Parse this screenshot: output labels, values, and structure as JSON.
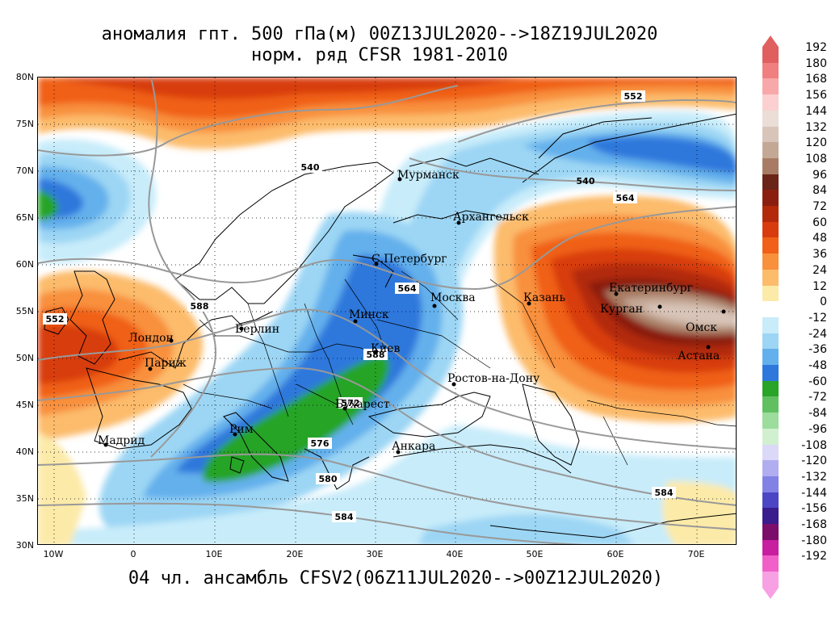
{
  "title": {
    "line1": "аномалия гпт. 500 гПа(м) 00Z13JUL2020-->18Z19JUL2020",
    "line2": "норм. ряд CFSR 1981-2010"
  },
  "footer": "04 чл. ансамбль CFSV2(06Z11JUL2020-->00Z12JUL2020)",
  "axes": {
    "lat_labels": [
      "80N",
      "75N",
      "70N",
      "65N",
      "60N",
      "55N",
      "50N",
      "45N",
      "40N",
      "35N",
      "30N"
    ],
    "lon_labels": [
      "10W",
      "0",
      "10E",
      "20E",
      "30E",
      "40E",
      "50E",
      "60E",
      "70E"
    ]
  },
  "legend": {
    "values": [
      "192",
      "180",
      "168",
      "156",
      "144",
      "132",
      "120",
      "108",
      "96",
      "84",
      "72",
      "60",
      "48",
      "36",
      "24",
      "12",
      "0",
      "-12",
      "-24",
      "-36",
      "-48",
      "-60",
      "-72",
      "-84",
      "-96",
      "-108",
      "-120",
      "-132",
      "-144",
      "-156",
      "-168",
      "-180",
      "-192"
    ],
    "colors": [
      "#e06060",
      "#f08080",
      "#f8a8a8",
      "#fcd0d0",
      "#eaded6",
      "#d8c4b8",
      "#c4a896",
      "#a87c64",
      "#6a2418",
      "#8a1f10",
      "#b22a0a",
      "#d83c0c",
      "#f06018",
      "#f8903c",
      "#fcbc6c",
      "#fceaa8",
      "#ffffff",
      "#c8ecfa",
      "#9cd6f4",
      "#64b0ec",
      "#2e78dc",
      "#28a428",
      "#60c060",
      "#9cdc9c",
      "#d0f0d0",
      "#dcd8f8",
      "#b0aef0",
      "#8282e4",
      "#4c46c4",
      "#3a1c8c",
      "#7a0e6a",
      "#c81ea0",
      "#f060c8",
      "#f8a0e4"
    ]
  },
  "contours": {
    "c552a": "552",
    "c552b": "552",
    "c540": "540",
    "c564a": "564",
    "c564b": "564",
    "c588a": "588",
    "c588b": "588",
    "c572": "572",
    "c576": "576",
    "c580": "580",
    "c584a": "584",
    "c584b": "584"
  },
  "cities": {
    "murmansk": "Мурманск",
    "arkhangelsk": "Архангельск",
    "stpetersburg": "С.Петербург",
    "moscow": "Москва",
    "kazan": "Казань",
    "yekaterinburg": "Екатеринбург",
    "kurgan": "Курган",
    "omsk": "Омск",
    "astana": "Астана",
    "minsk": "Минск",
    "berlin": "Берлин",
    "london": "Лондон",
    "paris": "Париж",
    "kiev": "Киев",
    "rostov": "Ростов-на-Дону",
    "bucharest": "Бухарест",
    "rome": "Рим",
    "madrid": "Мадрид",
    "ankara": "Анкара"
  }
}
